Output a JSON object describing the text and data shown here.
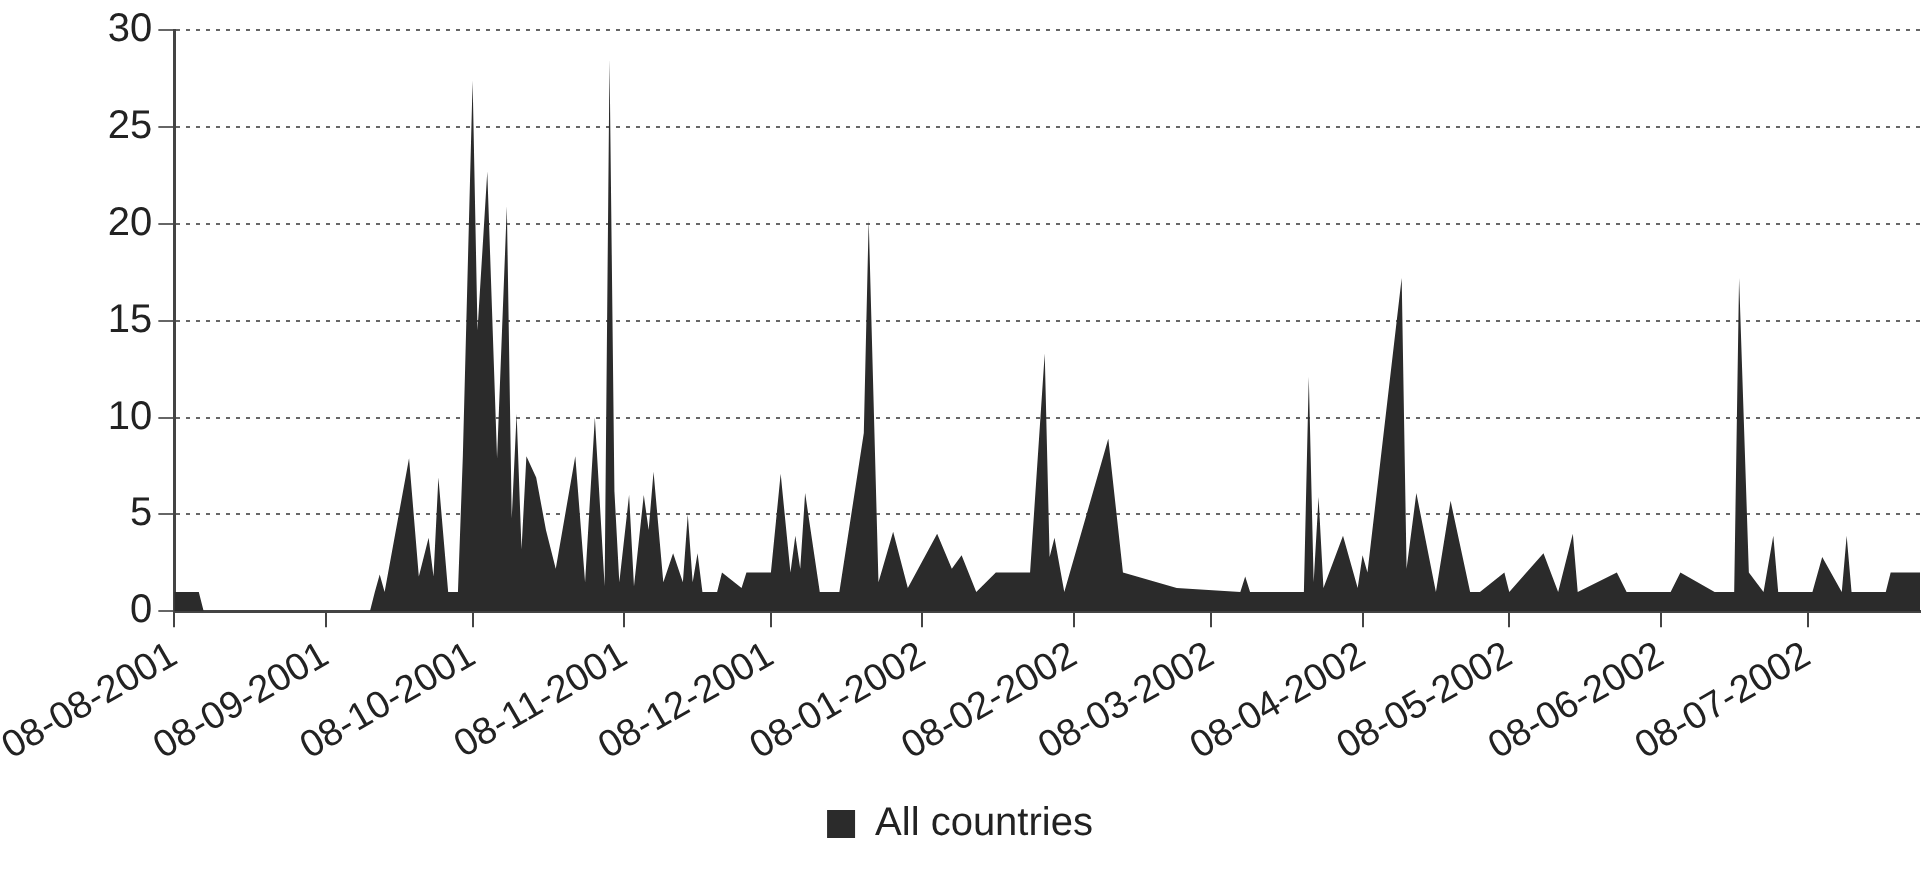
{
  "chart_data": {
    "type": "area",
    "legend": "bottom",
    "grid": "y",
    "marker": "none",
    "xlim": [
      "2001-08-08",
      "2002-07-31"
    ],
    "xticks": [
      {
        "value": "2001-08-08",
        "label": "08-08-2001"
      },
      {
        "value": "2001-09-08",
        "label": "08-09-2001"
      },
      {
        "value": "2001-10-08",
        "label": "08-10-2001"
      },
      {
        "value": "2001-11-08",
        "label": "08-11-2001"
      },
      {
        "value": "2001-12-08",
        "label": "08-12-2001"
      },
      {
        "value": "2002-01-08",
        "label": "08-01-2002"
      },
      {
        "value": "2002-02-08",
        "label": "08-02-2002"
      },
      {
        "value": "2002-03-08",
        "label": "08-03-2002"
      },
      {
        "value": "2002-04-08",
        "label": "08-04-2002"
      },
      {
        "value": "2002-05-08",
        "label": "08-05-2002"
      },
      {
        "value": "2002-06-08",
        "label": "08-06-2002"
      },
      {
        "value": "2002-07-08",
        "label": "08-07-2002"
      }
    ],
    "ylim": [
      0,
      30
    ],
    "yticks": [
      0,
      5,
      10,
      15,
      20,
      25,
      30
    ],
    "x": [
      "2001-08-08",
      "2001-08-13",
      "2001-08-14",
      "2001-09-17",
      "2001-09-18",
      "2001-09-19",
      "2001-09-20",
      "2001-09-25",
      "2001-09-27",
      "2001-09-29",
      "2001-09-30",
      "2001-10-01",
      "2001-10-03",
      "2001-10-05",
      "2001-10-06",
      "2001-10-08",
      "2001-10-09",
      "2001-10-11",
      "2001-10-13",
      "2001-10-15",
      "2001-10-16",
      "2001-10-17",
      "2001-10-18",
      "2001-10-19",
      "2001-10-21",
      "2001-10-23",
      "2001-10-25",
      "2001-10-29",
      "2001-10-31",
      "2001-11-02",
      "2001-11-04",
      "2001-11-05",
      "2001-11-06",
      "2001-11-07",
      "2001-11-09",
      "2001-11-10",
      "2001-11-12",
      "2001-11-13",
      "2001-11-14",
      "2001-11-16",
      "2001-11-18",
      "2001-11-20",
      "2001-11-21",
      "2001-11-22",
      "2001-11-23",
      "2001-11-24",
      "2001-11-27",
      "2001-11-28",
      "2001-12-02",
      "2001-12-03",
      "2001-12-08",
      "2001-12-10",
      "2001-12-12",
      "2001-12-13",
      "2001-12-14",
      "2001-12-15",
      "2001-12-18",
      "2001-12-22",
      "2001-12-27",
      "2001-12-28",
      "2001-12-30",
      "2002-01-02",
      "2002-01-05",
      "2002-01-11",
      "2002-01-14",
      "2002-01-16",
      "2002-01-19",
      "2002-01-23",
      "2002-01-30",
      "2002-02-02",
      "2002-02-03",
      "2002-02-04",
      "2002-02-06",
      "2002-02-15",
      "2002-02-18",
      "2002-03-01",
      "2002-03-14",
      "2002-03-15",
      "2002-03-16",
      "2002-03-27",
      "2002-03-28",
      "2002-03-29",
      "2002-03-30",
      "2002-03-31",
      "2002-04-04",
      "2002-04-07",
      "2002-04-08",
      "2002-04-09",
      "2002-04-16",
      "2002-04-17",
      "2002-04-19",
      "2002-04-23",
      "2002-04-26",
      "2002-04-30",
      "2002-05-02",
      "2002-05-07",
      "2002-05-08",
      "2002-05-15",
      "2002-05-18",
      "2002-05-21",
      "2002-05-22",
      "2002-05-30",
      "2002-06-01",
      "2002-06-10",
      "2002-06-12",
      "2002-06-19",
      "2002-06-23",
      "2002-06-24",
      "2002-06-26",
      "2002-06-29",
      "2002-07-01",
      "2002-07-02",
      "2002-07-09",
      "2002-07-11",
      "2002-07-15",
      "2002-07-16",
      "2002-07-17",
      "2002-07-24",
      "2002-07-25",
      "2002-07-31"
    ],
    "series": [
      {
        "name": "All countries",
        "color": "#2b2b2b",
        "values": [
          1,
          1,
          0,
          0,
          1,
          1.9,
          1,
          7.9,
          1.8,
          3.8,
          1.8,
          6.9,
          1,
          1,
          8,
          27.4,
          14.5,
          22.7,
          7.9,
          20.9,
          4.8,
          10.2,
          3.2,
          8,
          6.9,
          4.2,
          2.2,
          8,
          1.5,
          10,
          1.3,
          28.5,
          6.2,
          1.5,
          6,
          1.3,
          6,
          4.2,
          7.2,
          1.5,
          3,
          1.5,
          5,
          1.5,
          3,
          1,
          1,
          2,
          1.2,
          2,
          2,
          7.1,
          2,
          3.9,
          2.2,
          6.1,
          1,
          1,
          9.2,
          20.2,
          1.5,
          4.1,
          1.2,
          4,
          2.2,
          2.9,
          1,
          2,
          2,
          13.3,
          2.8,
          3.8,
          1,
          8.9,
          2,
          1.2,
          1,
          1.8,
          1,
          1,
          12.1,
          1.5,
          5.9,
          1.2,
          3.9,
          1.2,
          2.9,
          2,
          17.2,
          2.2,
          6.1,
          1,
          5.7,
          1,
          1,
          2,
          1,
          3,
          1,
          4,
          1,
          2,
          1,
          1,
          2,
          1,
          1,
          17.2,
          2,
          1,
          3.9,
          1,
          1,
          2.8,
          1,
          3.9,
          1,
          1,
          2,
          2
        ]
      }
    ]
  }
}
